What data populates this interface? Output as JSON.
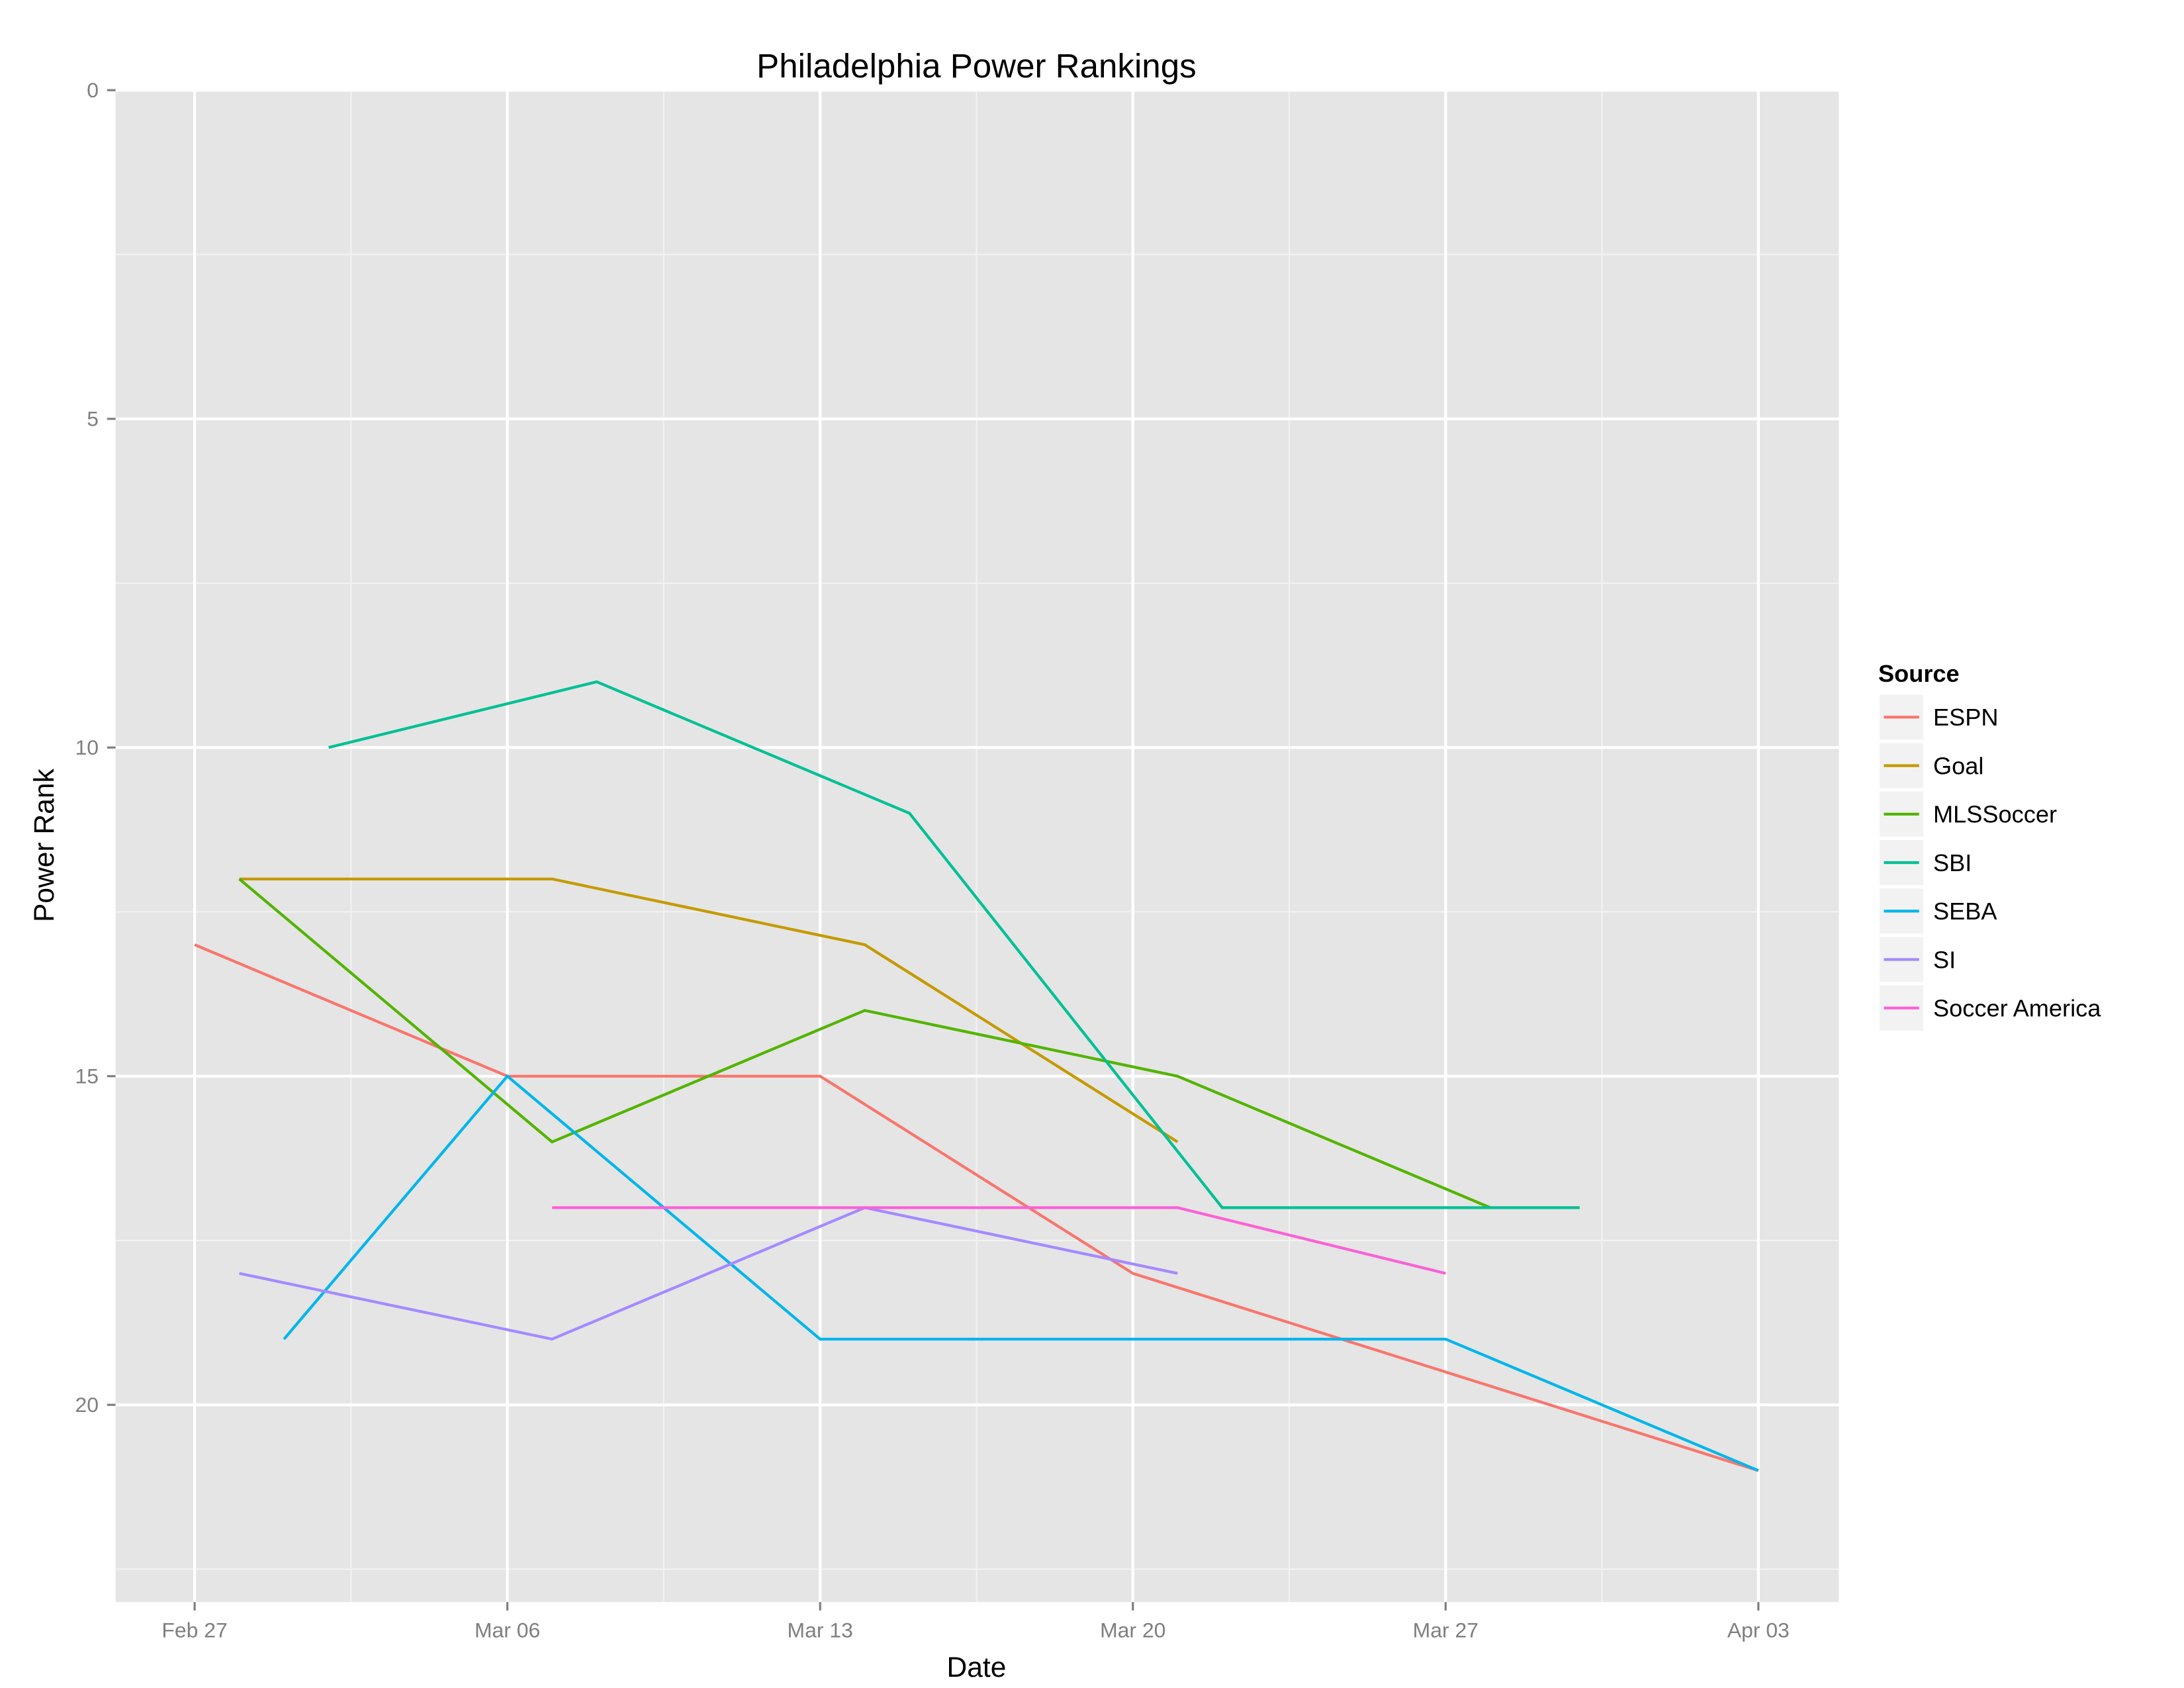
{
  "chart_data": {
    "type": "line",
    "title": "Philadelphia Power Rankings",
    "xlabel": "Date",
    "ylabel": "Power Rank",
    "x_unit": "days since Feb 27",
    "xlim": [
      -1.77,
      36.8
    ],
    "ylim": [
      0,
      23
    ],
    "y_reversed": true,
    "grid": true,
    "x_ticks": [
      {
        "day": 0,
        "label": "Feb 27"
      },
      {
        "day": 7,
        "label": "Mar 06"
      },
      {
        "day": 14,
        "label": "Mar 13"
      },
      {
        "day": 21,
        "label": "Mar 20"
      },
      {
        "day": 28,
        "label": "Mar 27"
      },
      {
        "day": 35,
        "label": "Apr 03"
      }
    ],
    "y_ticks": [
      {
        "value": 0,
        "label": "0"
      },
      {
        "value": 5,
        "label": "5"
      },
      {
        "value": 10,
        "label": "10"
      },
      {
        "value": 15,
        "label": "15"
      },
      {
        "value": 20,
        "label": "20"
      }
    ],
    "legend": {
      "title": "Source",
      "placement": "right"
    },
    "series": [
      {
        "name": "ESPN",
        "color": "#F8766D",
        "points": [
          [
            0,
            13
          ],
          [
            7,
            15
          ],
          [
            14,
            15
          ],
          [
            21,
            18
          ],
          [
            35,
            21
          ]
        ]
      },
      {
        "name": "Goal",
        "color": "#C49A00",
        "points": [
          [
            1,
            12
          ],
          [
            8,
            12
          ],
          [
            15,
            13
          ],
          [
            22,
            16
          ]
        ]
      },
      {
        "name": "MLSSoccer",
        "color": "#53B400",
        "points": [
          [
            1,
            12
          ],
          [
            8,
            16
          ],
          [
            15,
            14
          ],
          [
            22,
            15
          ],
          [
            29,
            17
          ]
        ]
      },
      {
        "name": "SBI",
        "color": "#00C094",
        "points": [
          [
            3,
            10
          ],
          [
            9,
            9
          ],
          [
            16,
            11
          ],
          [
            23,
            17
          ],
          [
            31,
            17
          ]
        ]
      },
      {
        "name": "SEBA",
        "color": "#00B6EB",
        "points": [
          [
            2,
            19
          ],
          [
            7,
            15
          ],
          [
            14,
            19
          ],
          [
            28,
            19
          ],
          [
            35,
            21
          ]
        ]
      },
      {
        "name": "SI",
        "color": "#A58AFF",
        "points": [
          [
            1,
            18
          ],
          [
            8,
            19
          ],
          [
            15,
            17
          ],
          [
            22,
            18
          ]
        ]
      },
      {
        "name": "Soccer America",
        "color": "#FB61D7",
        "points": [
          [
            8,
            17
          ],
          [
            22,
            17
          ],
          [
            28,
            18
          ]
        ]
      }
    ]
  }
}
